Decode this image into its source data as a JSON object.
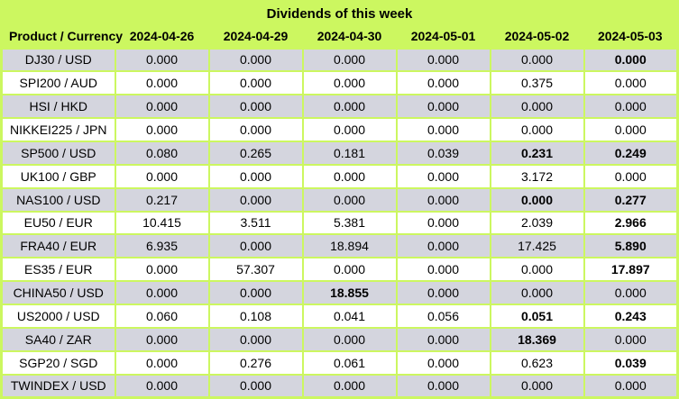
{
  "title": "Dividends of this week",
  "columns": [
    "Product / Currency",
    "2024-04-26",
    "2024-04-29",
    "2024-04-30",
    "2024-05-01",
    "2024-05-02",
    "2024-05-03"
  ],
  "rows": [
    {
      "product": "DJ30 / USD",
      "values": [
        "0.000",
        "0.000",
        "0.000",
        "0.000",
        "0.000",
        "0.000"
      ],
      "bold": [
        false,
        false,
        false,
        false,
        false,
        true
      ]
    },
    {
      "product": "SPI200 / AUD",
      "values": [
        "0.000",
        "0.000",
        "0.000",
        "0.000",
        "0.375",
        "0.000"
      ],
      "bold": [
        false,
        false,
        false,
        false,
        false,
        false
      ]
    },
    {
      "product": "HSI / HKD",
      "values": [
        "0.000",
        "0.000",
        "0.000",
        "0.000",
        "0.000",
        "0.000"
      ],
      "bold": [
        false,
        false,
        false,
        false,
        false,
        false
      ]
    },
    {
      "product": "NIKKEI225 / JPN",
      "values": [
        "0.000",
        "0.000",
        "0.000",
        "0.000",
        "0.000",
        "0.000"
      ],
      "bold": [
        false,
        false,
        false,
        false,
        false,
        false
      ]
    },
    {
      "product": "SP500 / USD",
      "values": [
        "0.080",
        "0.265",
        "0.181",
        "0.039",
        "0.231",
        "0.249"
      ],
      "bold": [
        false,
        false,
        false,
        false,
        true,
        true
      ]
    },
    {
      "product": "UK100 / GBP",
      "values": [
        "0.000",
        "0.000",
        "0.000",
        "0.000",
        "3.172",
        "0.000"
      ],
      "bold": [
        false,
        false,
        false,
        false,
        false,
        false
      ]
    },
    {
      "product": "NAS100 / USD",
      "values": [
        "0.217",
        "0.000",
        "0.000",
        "0.000",
        "0.000",
        "0.277"
      ],
      "bold": [
        false,
        false,
        false,
        false,
        true,
        true
      ]
    },
    {
      "product": "EU50 / EUR",
      "values": [
        "10.415",
        "3.511",
        "5.381",
        "0.000",
        "2.039",
        "2.966"
      ],
      "bold": [
        false,
        false,
        false,
        false,
        false,
        true
      ]
    },
    {
      "product": "FRA40 / EUR",
      "values": [
        "6.935",
        "0.000",
        "18.894",
        "0.000",
        "17.425",
        "5.890"
      ],
      "bold": [
        false,
        false,
        false,
        false,
        false,
        true
      ]
    },
    {
      "product": "ES35 / EUR",
      "values": [
        "0.000",
        "57.307",
        "0.000",
        "0.000",
        "0.000",
        "17.897"
      ],
      "bold": [
        false,
        false,
        false,
        false,
        false,
        true
      ]
    },
    {
      "product": "CHINA50 / USD",
      "values": [
        "0.000",
        "0.000",
        "18.855",
        "0.000",
        "0.000",
        "0.000"
      ],
      "bold": [
        false,
        false,
        true,
        false,
        false,
        false
      ]
    },
    {
      "product": "US2000 / USD",
      "values": [
        "0.060",
        "0.108",
        "0.041",
        "0.056",
        "0.051",
        "0.243"
      ],
      "bold": [
        false,
        false,
        false,
        false,
        true,
        true
      ]
    },
    {
      "product": "SA40 / ZAR",
      "values": [
        "0.000",
        "0.000",
        "0.000",
        "0.000",
        "18.369",
        "0.000"
      ],
      "bold": [
        false,
        false,
        false,
        false,
        true,
        false
      ]
    },
    {
      "product": "SGP20 / SGD",
      "values": [
        "0.000",
        "0.276",
        "0.061",
        "0.000",
        "0.623",
        "0.039"
      ],
      "bold": [
        false,
        false,
        false,
        false,
        false,
        true
      ]
    },
    {
      "product": "TWINDEX / USD",
      "values": [
        "0.000",
        "0.000",
        "0.000",
        "0.000",
        "0.000",
        "0.000"
      ],
      "bold": [
        false,
        false,
        false,
        false,
        false,
        false
      ]
    }
  ],
  "colors": {
    "accent_green": "#ccf760",
    "row_gray": "#d4d5de",
    "row_white": "#ffffff",
    "text": "#000000"
  }
}
